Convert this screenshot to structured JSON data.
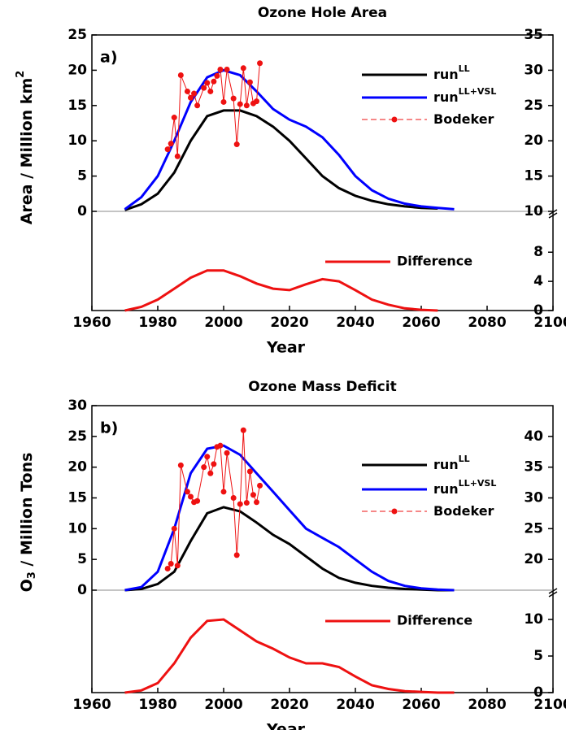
{
  "chart_data": [
    {
      "type": "line",
      "title": "Ozone Hole Area",
      "panel_label": "a)",
      "ylabel": [
        {
          "text": "Area / Million km"
        },
        {
          "text": "2",
          "sup": true
        }
      ],
      "xlabel": "Year",
      "xlim": [
        1960,
        2100
      ],
      "xticks": [
        1960,
        1980,
        2000,
        2020,
        2040,
        2060,
        2080,
        2100
      ],
      "ylim": [
        0,
        25
      ],
      "yticks": [
        0,
        5,
        10,
        15,
        20,
        25
      ],
      "y2lim": [
        10,
        35
      ],
      "y2ticks": [
        10,
        15,
        20,
        25,
        30,
        35
      ],
      "x": [
        1970,
        1975,
        1980,
        1985,
        1990,
        1995,
        2000,
        2005,
        2010,
        2015,
        2020,
        2025,
        2030,
        2035,
        2040,
        2045,
        2050,
        2055,
        2060,
        2065,
        2070
      ],
      "series": [
        {
          "name": "run",
          "name_sup": "LL",
          "color": "#000000",
          "values": [
            0.2,
            1,
            2.5,
            5.5,
            10,
            13.5,
            14.3,
            14.3,
            13.5,
            12,
            10,
            7.5,
            5,
            3.3,
            2.2,
            1.5,
            1,
            0.7,
            0.5,
            0.4,
            null
          ]
        },
        {
          "name": "run",
          "name_sup": "LL+VSL",
          "color": "#0000ff",
          "values": [
            0.3,
            2,
            5,
            10,
            15.5,
            19,
            20,
            19.3,
            17,
            14.5,
            13,
            12,
            10.5,
            8,
            5,
            3,
            1.8,
            1.1,
            0.7,
            0.5,
            0.3
          ]
        },
        {
          "name": "Bodeker",
          "color": "#ee1111",
          "markers": true,
          "x": [
            1983,
            1984,
            1985,
            1986,
            1987,
            1989,
            1990,
            1991,
            1992,
            1994,
            1995,
            1996,
            1997,
            1998,
            1999,
            2000,
            2001,
            2003,
            2004,
            2005,
            2006,
            2007,
            2008,
            2009,
            2010,
            2011
          ],
          "values": [
            8.8,
            9.6,
            13.3,
            7.8,
            19.3,
            17,
            16.1,
            16.7,
            15,
            17.5,
            18.2,
            17,
            18.4,
            19.2,
            20.1,
            15.5,
            20.1,
            16,
            9.5,
            15.2,
            20.3,
            15,
            18.3,
            15.3,
            15.6,
            21
          ]
        }
      ],
      "difference": {
        "ylim": [
          0,
          13.6
        ],
        "yticks": [
          0,
          4,
          8
        ],
        "series": [
          {
            "name": "Difference",
            "color": "#ee1111",
            "values": [
              0,
              0.5,
              1.5,
              3,
              4.5,
              5.5,
              5.5,
              4.7,
              3.7,
              3,
              2.8,
              3.6,
              4.3,
              4,
              2.8,
              1.5,
              0.8,
              0.3,
              0.1,
              0,
              null
            ]
          }
        ]
      }
    },
    {
      "type": "line",
      "title": "Ozone Mass Deficit",
      "panel_label": "b)",
      "ylabel": [
        {
          "text": "O"
        },
        {
          "text": "3",
          "sub": true
        },
        {
          "text": " / Million Tons"
        }
      ],
      "xlabel": "Year",
      "xlim": [
        1960,
        2100
      ],
      "xticks": [
        1960,
        1980,
        2000,
        2020,
        2040,
        2060,
        2080,
        2100
      ],
      "ylim": [
        0,
        30
      ],
      "yticks": [
        0,
        5,
        10,
        15,
        20,
        25,
        30
      ],
      "y2lim": [
        15,
        45
      ],
      "y2ticks": [
        20,
        25,
        30,
        35,
        40
      ],
      "x": [
        1970,
        1975,
        1980,
        1985,
        1990,
        1995,
        2000,
        2005,
        2010,
        2015,
        2020,
        2025,
        2030,
        2035,
        2040,
        2045,
        2050,
        2055,
        2060,
        2065,
        2070
      ],
      "series": [
        {
          "name": "run",
          "name_sup": "LL",
          "color": "#000000",
          "values": [
            0,
            0.2,
            1,
            3,
            8,
            12.5,
            13.5,
            12.8,
            11,
            9,
            7.5,
            5.5,
            3.5,
            2,
            1.2,
            0.7,
            0.4,
            0.2,
            0.1,
            0,
            0
          ]
        },
        {
          "name": "run",
          "name_sup": "LL+VSL",
          "color": "#0000ff",
          "values": [
            0,
            0.5,
            3,
            10,
            19,
            23,
            23.5,
            22,
            19,
            16,
            13,
            10,
            8.5,
            7,
            5,
            3,
            1.5,
            0.7,
            0.3,
            0.1,
            0
          ]
        },
        {
          "name": "Bodeker",
          "color": "#ee1111",
          "markers": true,
          "x": [
            1983,
            1984,
            1985,
            1986,
            1987,
            1989,
            1990,
            1991,
            1992,
            1994,
            1995,
            1996,
            1997,
            1998,
            1999,
            2000,
            2001,
            2003,
            2004,
            2005,
            2006,
            2007,
            2008,
            2009,
            2010,
            2011
          ],
          "values": [
            3.5,
            4.3,
            10,
            4,
            20.3,
            16,
            15.2,
            14.3,
            14.5,
            20,
            21.7,
            19,
            20.5,
            23.3,
            23.5,
            16,
            22.3,
            15,
            5.7,
            14,
            26,
            14.2,
            19.3,
            15.5,
            14.3,
            17
          ]
        }
      ],
      "difference": {
        "ylim": [
          0,
          14
        ],
        "yticks": [
          0,
          5,
          10
        ],
        "series": [
          {
            "name": "Difference",
            "color": "#ee1111",
            "values": [
              0,
              0.3,
              1.3,
              4,
              7.5,
              9.8,
              10,
              8.5,
              7,
              6,
              4.8,
              4,
              4,
              3.5,
              2.2,
              1,
              0.5,
              0.2,
              0.1,
              0,
              0
            ]
          }
        ]
      }
    }
  ]
}
